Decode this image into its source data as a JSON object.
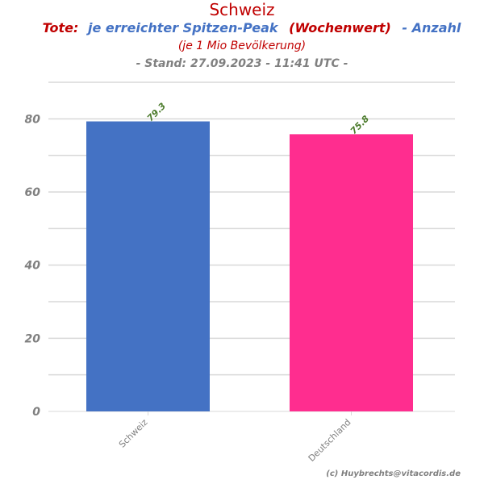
{
  "title": {
    "main": "Schweiz",
    "line2": {
      "part1": "Tote:",
      "part2": "je erreichter Spitzen-Peak",
      "part3": "(Wochenwert)",
      "part4": "- Anzahl"
    },
    "line3": "(je 1 Mio Bevölkerung)",
    "line4": "- Stand: 27.09.2023 - 11:41 UTC -"
  },
  "credit": "(c) Huybrechts@vitacordis.de",
  "colors": {
    "title_red": "#c00000",
    "title_blue": "#4472c4",
    "bar_schweiz": "#4472c4",
    "bar_deutschland": "#ff2d8f",
    "grid": "#d9d9d9",
    "label_green": "#4a7a2a",
    "tick_gray": "#808080"
  },
  "chart_data": {
    "type": "bar",
    "categories": [
      "Schweiz",
      "Deutschland"
    ],
    "values": [
      79.3,
      75.8
    ],
    "value_labels": [
      "79.3",
      "75.8"
    ],
    "ylim": [
      0,
      90
    ],
    "yticks": [
      0,
      20,
      40,
      60,
      80
    ],
    "ytick_labels": [
      "0",
      "20",
      "40",
      "60",
      "80"
    ],
    "grid": true
  }
}
